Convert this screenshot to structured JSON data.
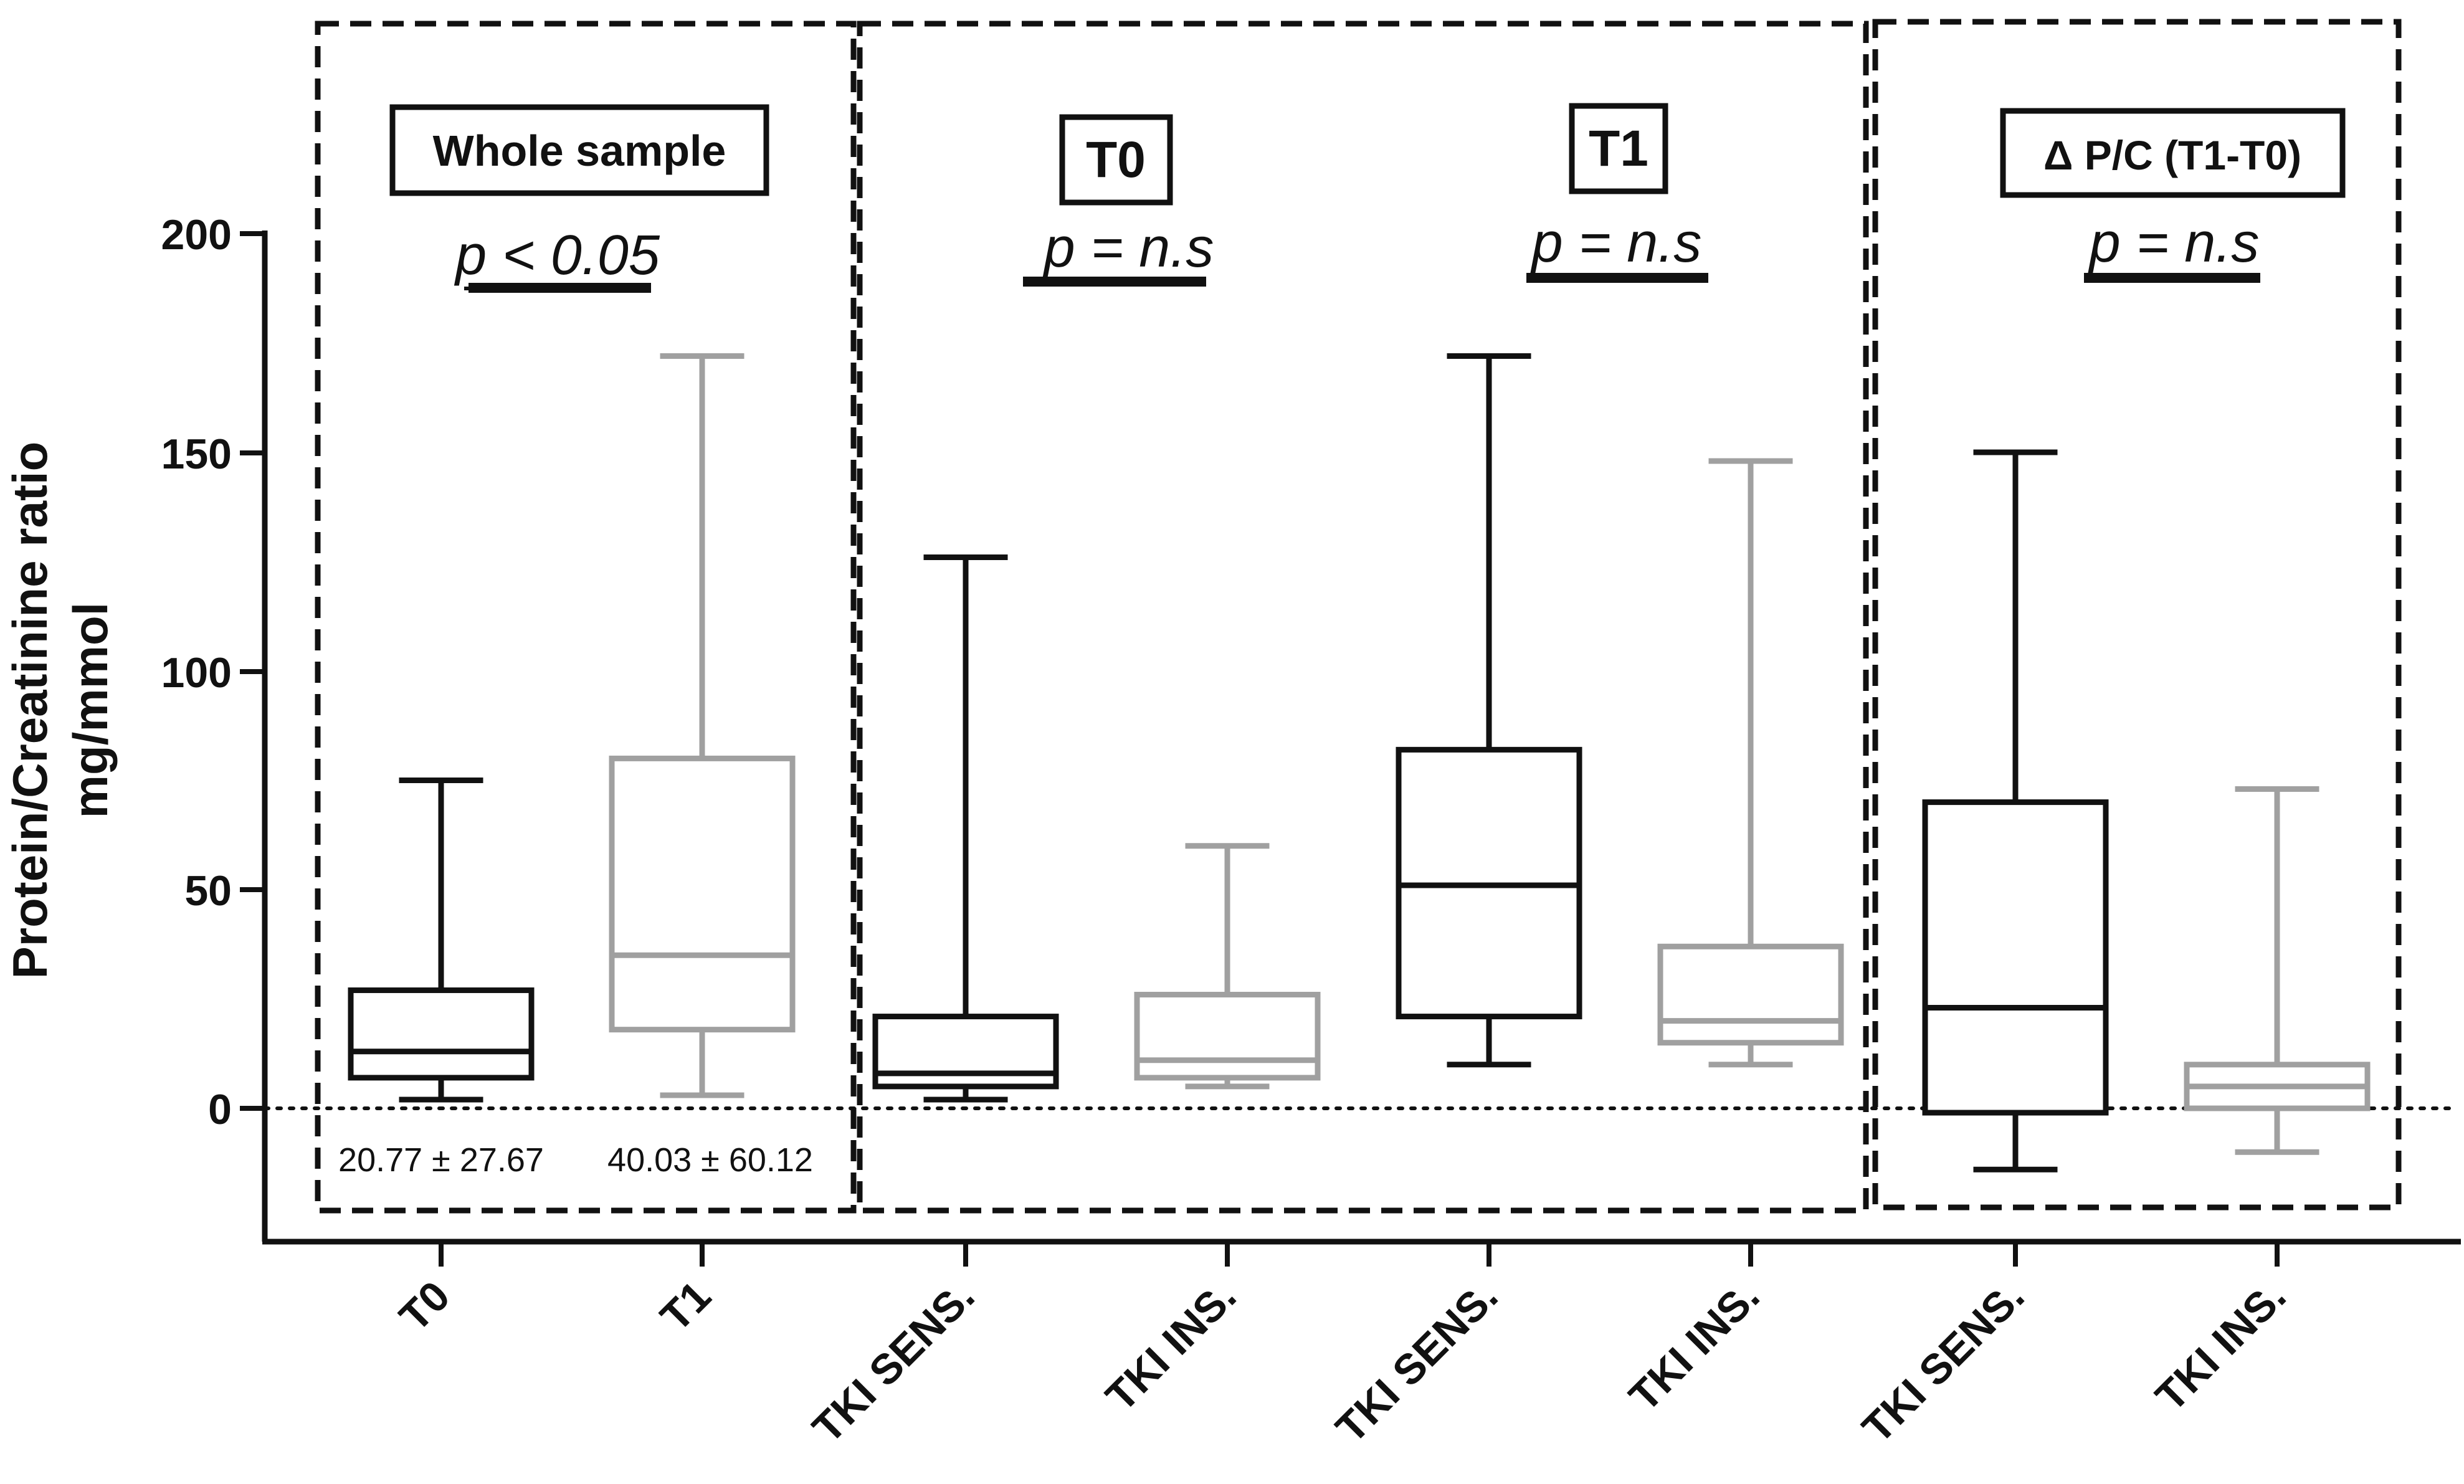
{
  "chart_data": {
    "type": "boxplot",
    "ylabel_line1": "Protein/Creatinine ratio",
    "ylabel_line2": "mg/mmol",
    "ylim": [
      -30,
      200
    ],
    "yticks": [
      "0",
      "50",
      "100",
      "150",
      "200"
    ],
    "reference_line": 0,
    "colors": {
      "black": "#111111",
      "gray": "#a0a0a0"
    },
    "boxes": [
      {
        "label": "T0",
        "color": "black",
        "min": 2,
        "q1": 7,
        "median": 13,
        "q3": 27,
        "max": 75
      },
      {
        "label": "T1",
        "color": "gray",
        "min": 3,
        "q1": 18,
        "median": 35,
        "q3": 80,
        "max": 172
      },
      {
        "label": "TKI SENS.",
        "color": "black",
        "min": 2,
        "q1": 5,
        "median": 8,
        "q3": 21,
        "max": 126
      },
      {
        "label": "TKI INS.",
        "color": "gray",
        "min": 5,
        "q1": 7,
        "median": 11,
        "q3": 26,
        "max": 60
      },
      {
        "label": "TKI SENS.",
        "color": "black",
        "min": 10,
        "q1": 21,
        "median": 51,
        "q3": 82,
        "max": 172
      },
      {
        "label": "TKI INS.",
        "color": "gray",
        "min": 10,
        "q1": 15,
        "median": 20,
        "q3": 37,
        "max": 148
      },
      {
        "label": "TKI SENS.",
        "color": "black",
        "min": -14,
        "q1": -1,
        "median": 23,
        "q3": 70,
        "max": 150
      },
      {
        "label": "TKI INS.",
        "color": "gray",
        "min": -10,
        "q1": 0,
        "median": 5,
        "q3": 10,
        "max": 73
      }
    ],
    "panels": [
      {
        "title": "Whole sample",
        "pvalue": "p < 0.05"
      },
      {
        "title": "T0",
        "pvalue": "p = n.s"
      },
      {
        "title": "T1",
        "pvalue": "p = n.s"
      },
      {
        "title": "Δ P/C (T1-T0)",
        "pvalue": "p = n.s"
      }
    ],
    "annotations": [
      "20.77 ± 27.67",
      "40.03 ± 60.12"
    ]
  }
}
